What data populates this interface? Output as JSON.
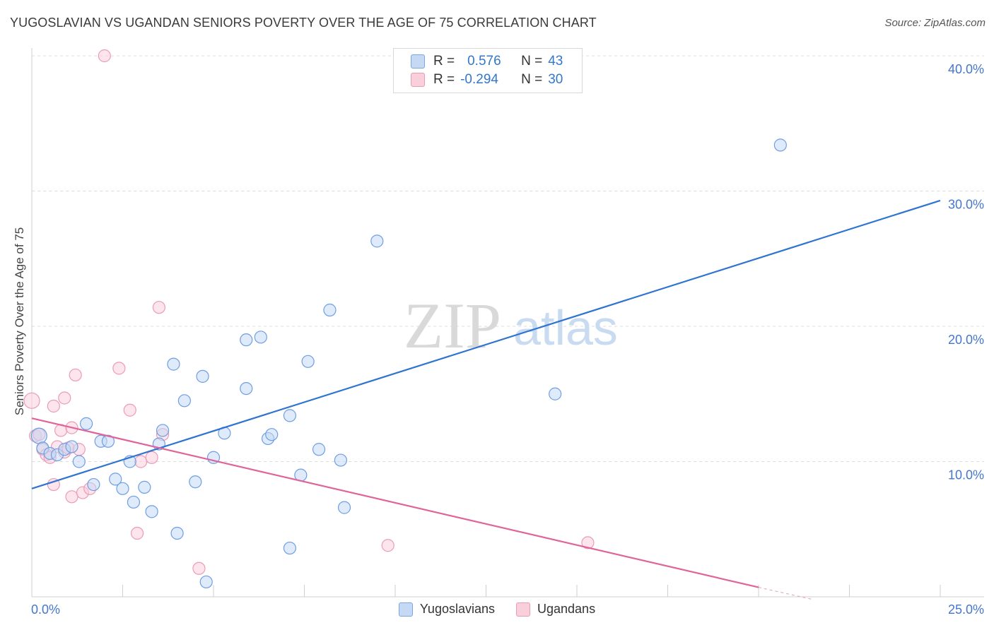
{
  "title": "YUGOSLAVIAN VS UGANDAN SENIORS POVERTY OVER THE AGE OF 75 CORRELATION CHART",
  "source": "Source: ZipAtlas.com",
  "watermark": {
    "zip": "ZIP",
    "atlas": "atlas"
  },
  "legend": {
    "rows": [
      {
        "r_label": "R =",
        "r_value": "0.576",
        "n_label": "N =",
        "n_value": "43"
      },
      {
        "r_label": "R =",
        "r_value": "-0.294",
        "n_label": "N =",
        "n_value": "30"
      }
    ]
  },
  "chart_data": {
    "type": "scatter",
    "title": "YUGOSLAVIAN VS UGANDAN SENIORS POVERTY OVER THE AGE OF 75 CORRELATION CHART",
    "xlabel": "",
    "ylabel": "Seniors Poverty Over the Age of 75",
    "xlim": [
      0,
      25
    ],
    "ylim": [
      0,
      40
    ],
    "x_tick_labels": [
      "0.0%",
      "25.0%"
    ],
    "y_ticks": [
      10,
      20,
      30,
      40
    ],
    "y_tick_labels": [
      "10.0%",
      "20.0%",
      "30.0%",
      "40.0%"
    ],
    "grid": true,
    "legend_position": "bottom-center",
    "colors": {
      "Yugoslavians": "#4a86e8",
      "Ugandans": "#ea7fa0",
      "blue_line": "#2f74d0",
      "pink_line": "#e0649a"
    },
    "series": [
      {
        "name": "Yugoslavians",
        "color": "#4a86e8",
        "points": [
          [
            0.2,
            11.9
          ],
          [
            0.3,
            11.0
          ],
          [
            0.5,
            10.6
          ],
          [
            0.7,
            10.5
          ],
          [
            0.9,
            10.9
          ],
          [
            1.1,
            11.1
          ],
          [
            1.3,
            10.0
          ],
          [
            1.5,
            12.8
          ],
          [
            1.7,
            8.3
          ],
          [
            1.9,
            11.5
          ],
          [
            2.1,
            11.5
          ],
          [
            2.3,
            8.7
          ],
          [
            2.5,
            8.0
          ],
          [
            2.7,
            10.0
          ],
          [
            2.8,
            7.0
          ],
          [
            3.1,
            8.1
          ],
          [
            3.3,
            6.3
          ],
          [
            3.5,
            11.3
          ],
          [
            3.6,
            12.3
          ],
          [
            3.9,
            17.2
          ],
          [
            4.0,
            4.7
          ],
          [
            4.2,
            14.5
          ],
          [
            4.5,
            8.5
          ],
          [
            4.7,
            16.3
          ],
          [
            4.8,
            1.1
          ],
          [
            5.0,
            10.3
          ],
          [
            5.3,
            12.1
          ],
          [
            5.9,
            15.4
          ],
          [
            5.9,
            19.0
          ],
          [
            6.3,
            19.2
          ],
          [
            6.5,
            11.7
          ],
          [
            6.6,
            12.0
          ],
          [
            7.1,
            13.4
          ],
          [
            7.1,
            3.6
          ],
          [
            7.4,
            9.0
          ],
          [
            7.6,
            17.4
          ],
          [
            7.9,
            10.9
          ],
          [
            8.2,
            21.2
          ],
          [
            8.5,
            10.1
          ],
          [
            8.6,
            6.6
          ],
          [
            9.5,
            26.3
          ],
          [
            14.4,
            15.0
          ],
          [
            20.6,
            33.4
          ]
        ]
      },
      {
        "name": "Ugandans",
        "color": "#ea7fa0",
        "points": [
          [
            0.0,
            14.5
          ],
          [
            0.1,
            11.9
          ],
          [
            0.2,
            12.0
          ],
          [
            0.3,
            10.9
          ],
          [
            0.4,
            10.5
          ],
          [
            0.5,
            10.3
          ],
          [
            0.6,
            8.3
          ],
          [
            0.6,
            14.1
          ],
          [
            0.7,
            11.1
          ],
          [
            0.8,
            12.3
          ],
          [
            0.9,
            10.7
          ],
          [
            0.9,
            14.7
          ],
          [
            1.0,
            11.0
          ],
          [
            1.1,
            7.4
          ],
          [
            1.1,
            12.5
          ],
          [
            1.2,
            16.4
          ],
          [
            1.3,
            10.9
          ],
          [
            1.4,
            7.7
          ],
          [
            1.6,
            8.0
          ],
          [
            2.0,
            40.0
          ],
          [
            2.4,
            16.9
          ],
          [
            2.7,
            13.8
          ],
          [
            2.9,
            4.7
          ],
          [
            3.0,
            10.0
          ],
          [
            3.3,
            10.3
          ],
          [
            3.5,
            21.4
          ],
          [
            3.6,
            12.0
          ],
          [
            4.6,
            2.1
          ],
          [
            9.8,
            3.8
          ],
          [
            15.3,
            4.0
          ]
        ]
      }
    ],
    "trend_lines": [
      {
        "series": "Yugoslavians",
        "x": [
          0,
          25
        ],
        "y": [
          8.0,
          29.3
        ]
      },
      {
        "series": "Ugandans",
        "x": [
          0,
          20.0
        ],
        "y": [
          13.2,
          0.7
        ],
        "dashed_extension": {
          "x": [
            20.0,
            21.5
          ],
          "y": [
            0.7,
            -0.2
          ]
        }
      }
    ]
  },
  "bottom_legend": [
    {
      "label": "Yugoslavians"
    },
    {
      "label": "Ugandans"
    }
  ]
}
